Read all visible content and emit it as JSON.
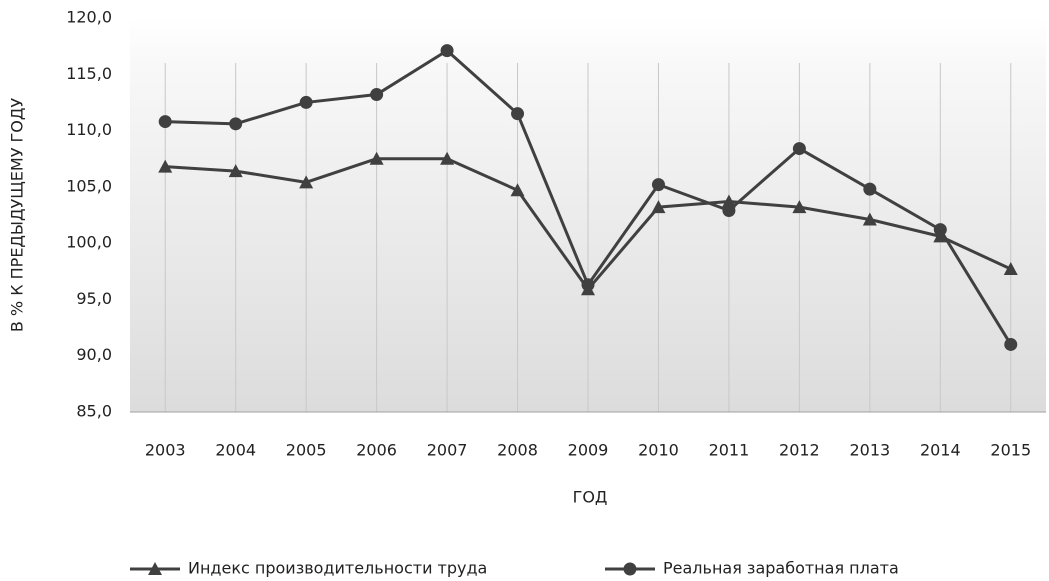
{
  "chart_data": {
    "type": "line",
    "y_label": "В % К ПРЕДЫДУЩЕМУ ГОДУ",
    "x_label": "ГОД",
    "categories": [
      "2003",
      "2004",
      "2005",
      "2006",
      "2007",
      "2008",
      "2009",
      "2010",
      "2011",
      "2012",
      "2013",
      "2014",
      "2015"
    ],
    "series": [
      {
        "name": "Индекс производительности труда",
        "color": "#404040",
        "marker": "triangle",
        "values": [
          106.8,
          106.4,
          105.4,
          107.5,
          107.5,
          104.7,
          95.9,
          103.2,
          103.7,
          103.2,
          102.1,
          100.6,
          97.7
        ]
      },
      {
        "name": "Реальная заработная плата",
        "color": "#404040",
        "marker": "circle",
        "values": [
          110.8,
          110.6,
          112.5,
          113.2,
          117.1,
          111.5,
          96.3,
          105.2,
          102.9,
          108.4,
          104.8,
          101.2,
          91.0
        ]
      }
    ],
    "ylim": [
      85,
      120
    ],
    "yticks": [
      {
        "value": 85,
        "label": "85,0"
      },
      {
        "value": 90,
        "label": "90,0"
      },
      {
        "value": 95,
        "label": "95,0"
      },
      {
        "value": 100,
        "label": "100,0"
      },
      {
        "value": 105,
        "label": "105,0"
      },
      {
        "value": 110,
        "label": "110,0"
      },
      {
        "value": 115,
        "label": "115,0"
      },
      {
        "value": 120,
        "label": "120,0"
      }
    ],
    "legend": "bottom"
  }
}
